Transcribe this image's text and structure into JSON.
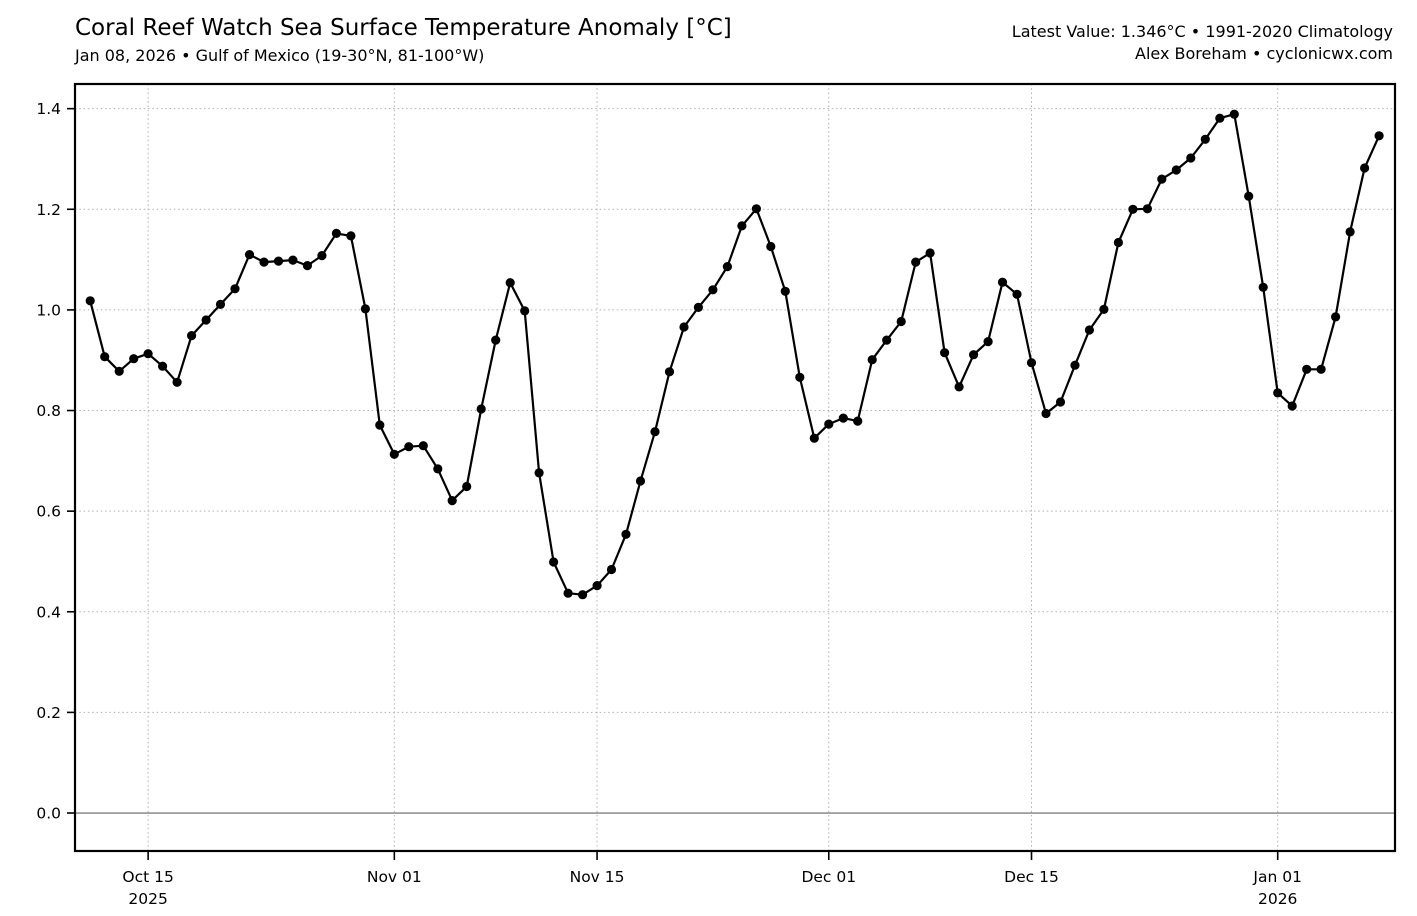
{
  "header": {
    "title": "Coral Reef Watch Sea Surface Temperature Anomaly [°C]",
    "subtitle": "Jan 08, 2026 • Gulf of Mexico (19-30°N, 81-100°W)",
    "latest_value_line": "Latest Value: 1.346°C • 1991-2020 Climatology",
    "credit_line": "Alex Boreham • cyclonicwx.com"
  },
  "chart_data": {
    "type": "line",
    "title": "Coral Reef Watch Sea Surface Temperature Anomaly [°C]",
    "subtitle": "Jan 08, 2026 • Gulf of Mexico (19-30°N, 81-100°W)",
    "xlabel": "",
    "ylabel": "",
    "units": "°C",
    "latest_value": 1.346,
    "climatology": "1991-2020",
    "region": "Gulf of Mexico (19-30°N, 81-100°W)",
    "grid": "dotted",
    "zero_line": true,
    "legend_position": "none",
    "marker": "circle",
    "line_color": "#000000",
    "marker_color": "#000000",
    "grid_color": "#b0b0b0",
    "zero_line_color": "#808080",
    "spine_color": "#000000",
    "ylim": [
      -0.0755,
      1.449
    ],
    "yticks": [
      0.0,
      0.2,
      0.4,
      0.6,
      0.8,
      1.0,
      1.2,
      1.4
    ],
    "xticks": [
      {
        "date": "2025-10-15",
        "label": "Oct 15",
        "sublabel": "2025"
      },
      {
        "date": "2025-11-01",
        "label": "Nov 01",
        "sublabel": ""
      },
      {
        "date": "2025-11-15",
        "label": "Nov 15",
        "sublabel": ""
      },
      {
        "date": "2025-12-01",
        "label": "Dec 01",
        "sublabel": ""
      },
      {
        "date": "2025-12-15",
        "label": "Dec 15",
        "sublabel": ""
      },
      {
        "date": "2026-01-01",
        "label": "Jan 01",
        "sublabel": "2026"
      }
    ],
    "series": [
      {
        "name": "SST Anomaly",
        "frequency": "daily",
        "start_date": "2025-10-11",
        "end_date": "2026-01-08",
        "values": [
          1.018,
          0.907,
          0.878,
          0.903,
          0.913,
          0.888,
          0.856,
          0.949,
          0.98,
          1.011,
          1.042,
          1.11,
          1.095,
          1.097,
          1.099,
          1.088,
          1.108,
          1.152,
          1.147,
          1.002,
          0.771,
          0.713,
          0.728,
          0.73,
          0.684,
          0.621,
          0.649,
          0.803,
          0.94,
          1.054,
          0.998,
          0.676,
          0.499,
          0.437,
          0.434,
          0.452,
          0.484,
          0.554,
          0.66,
          0.758,
          0.877,
          0.966,
          1.005,
          1.04,
          1.086,
          1.167,
          1.201,
          1.126,
          1.037,
          0.866,
          0.745,
          0.773,
          0.785,
          0.779,
          0.901,
          0.94,
          0.977,
          1.095,
          1.113,
          0.915,
          0.847,
          0.911,
          0.937,
          1.055,
          1.031,
          0.895,
          0.794,
          0.817,
          0.89,
          0.96,
          1.001,
          1.134,
          1.2,
          1.201,
          1.26,
          1.278,
          1.302,
          1.339,
          1.381,
          1.389,
          1.226,
          1.045,
          0.835,
          0.809,
          0.882,
          0.882,
          0.986,
          1.155,
          1.282,
          1.346
        ]
      }
    ]
  }
}
